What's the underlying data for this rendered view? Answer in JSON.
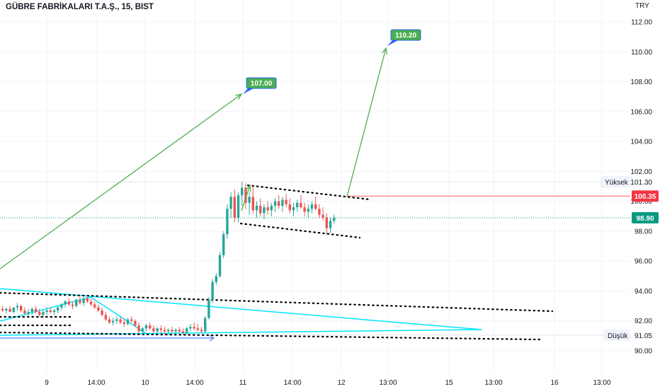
{
  "header": {
    "title": "GÜBRE FABRİKALARI T.A.Ş., 15, BIST",
    "currency": "TRY"
  },
  "colors": {
    "up": "#26a69a",
    "down": "#ef5350",
    "trend_arrow": "#4caf50",
    "cyan_lines": "#00e5ff",
    "dotted": "#000000",
    "price_tag_current": "#089981",
    "price_tag_red": "#f23645",
    "target_label": "#4caf50"
  },
  "chart_data": {
    "type": "candlestick",
    "symbol": "GÜBRE FABRİKALARI T.A.Ş.",
    "interval": "15",
    "exchange": "BIST",
    "currency": "TRY",
    "y_axis": {
      "ticks": [
        "112.00",
        "110.00",
        "108.00",
        "106.00",
        "104.00",
        "102.00",
        "100.00",
        "98.00",
        "96.00",
        "94.00",
        "92.00",
        "90.00"
      ],
      "range": [
        89.2,
        113.0
      ]
    },
    "x_axis": {
      "ticks": [
        "9",
        "14:00",
        "10",
        "14:00",
        "11",
        "14:00",
        "12",
        "13:00",
        "15",
        "13:00",
        "16",
        "13:00"
      ]
    },
    "price_labels": {
      "high": {
        "label": "Yüksek",
        "value": "101.30"
      },
      "low": {
        "label": "Düşük",
        "value": "91.05"
      },
      "red_line": {
        "value": "100.35"
      },
      "current": {
        "value": "98.90"
      }
    },
    "targets": [
      {
        "value": "107.00"
      },
      {
        "value": "110.20"
      }
    ],
    "candles": [
      [
        92.8,
        93.0,
        92.6,
        92.7
      ],
      [
        92.7,
        92.9,
        92.5,
        92.8
      ],
      [
        92.8,
        93.0,
        92.6,
        92.6
      ],
      [
        92.6,
        92.9,
        92.5,
        92.9
      ],
      [
        92.9,
        93.2,
        92.7,
        93.0
      ],
      [
        93.0,
        93.1,
        92.6,
        92.7
      ],
      [
        92.7,
        92.9,
        92.4,
        92.5
      ],
      [
        92.5,
        92.8,
        92.3,
        92.6
      ],
      [
        92.6,
        92.9,
        92.4,
        92.8
      ],
      [
        92.8,
        93.0,
        92.5,
        92.6
      ],
      [
        92.6,
        92.8,
        92.3,
        92.4
      ],
      [
        92.4,
        92.7,
        92.2,
        92.6
      ],
      [
        92.6,
        92.9,
        92.4,
        92.7
      ],
      [
        92.7,
        92.9,
        92.5,
        92.6
      ],
      [
        92.6,
        92.8,
        92.4,
        92.7
      ],
      [
        92.7,
        93.0,
        92.5,
        92.9
      ],
      [
        92.9,
        93.2,
        92.7,
        93.1
      ],
      [
        93.1,
        93.4,
        92.9,
        93.3
      ],
      [
        93.3,
        93.5,
        93.0,
        93.1
      ],
      [
        93.1,
        93.3,
        92.8,
        93.0
      ],
      [
        93.0,
        93.5,
        92.9,
        93.4
      ],
      [
        93.4,
        93.6,
        93.1,
        93.2
      ],
      [
        93.2,
        93.6,
        93.0,
        93.5
      ],
      [
        93.5,
        93.7,
        93.2,
        93.3
      ],
      [
        93.3,
        93.5,
        93.0,
        93.1
      ],
      [
        93.1,
        93.3,
        92.8,
        92.9
      ],
      [
        92.9,
        93.1,
        92.6,
        92.7
      ],
      [
        92.7,
        92.9,
        92.3,
        92.4
      ],
      [
        92.4,
        92.6,
        92.0,
        92.1
      ],
      [
        92.1,
        92.3,
        91.8,
        91.9
      ],
      [
        91.9,
        92.2,
        91.7,
        92.0
      ],
      [
        92.0,
        92.3,
        91.8,
        92.1
      ],
      [
        92.1,
        92.3,
        91.8,
        91.9
      ],
      [
        91.9,
        92.1,
        91.6,
        91.8
      ],
      [
        91.8,
        92.2,
        91.7,
        92.1
      ],
      [
        92.1,
        92.3,
        91.9,
        92.0
      ],
      [
        92.0,
        92.1,
        91.6,
        91.7
      ],
      [
        91.7,
        91.9,
        91.2,
        91.3
      ],
      [
        91.3,
        91.6,
        91.1,
        91.5
      ],
      [
        91.5,
        91.8,
        91.3,
        91.7
      ],
      [
        91.7,
        91.9,
        91.4,
        91.5
      ],
      [
        91.5,
        91.7,
        91.2,
        91.3
      ],
      [
        91.3,
        91.6,
        91.1,
        91.5
      ],
      [
        91.5,
        91.7,
        91.2,
        91.4
      ],
      [
        91.4,
        91.6,
        91.1,
        91.3
      ],
      [
        91.3,
        91.5,
        91.1,
        91.4
      ],
      [
        91.4,
        91.6,
        91.2,
        91.3
      ],
      [
        91.3,
        91.5,
        91.1,
        91.4
      ],
      [
        91.4,
        91.6,
        91.2,
        91.3
      ],
      [
        91.3,
        91.5,
        91.1,
        91.2
      ],
      [
        91.2,
        91.6,
        91.1,
        91.5
      ],
      [
        91.5,
        91.8,
        91.3,
        91.6
      ],
      [
        91.6,
        91.9,
        91.4,
        91.5
      ],
      [
        91.5,
        91.8,
        91.3,
        91.4
      ],
      [
        91.4,
        91.6,
        91.2,
        91.3
      ],
      [
        91.3,
        92.3,
        91.2,
        92.2
      ],
      [
        92.2,
        93.6,
        92.1,
        93.4
      ],
      [
        93.4,
        94.8,
        93.2,
        94.6
      ],
      [
        94.6,
        95.2,
        94.4,
        95.0
      ],
      [
        95.0,
        96.6,
        94.9,
        96.4
      ],
      [
        96.4,
        98.0,
        96.2,
        97.8
      ],
      [
        97.8,
        99.8,
        97.5,
        99.5
      ],
      [
        99.5,
        100.6,
        98.9,
        100.3
      ],
      [
        100.3,
        100.8,
        98.6,
        98.9
      ],
      [
        98.9,
        100.6,
        98.6,
        100.4
      ],
      [
        100.4,
        101.3,
        99.7,
        100.9
      ],
      [
        100.9,
        101.2,
        99.5,
        99.9
      ],
      [
        99.9,
        100.6,
        99.1,
        100.3
      ],
      [
        100.3,
        101.0,
        99.2,
        99.4
      ],
      [
        99.4,
        100.0,
        98.9,
        99.7
      ],
      [
        99.7,
        100.2,
        99.0,
        99.2
      ],
      [
        99.2,
        99.8,
        98.8,
        99.6
      ],
      [
        99.6,
        100.0,
        99.1,
        99.4
      ],
      [
        99.4,
        99.9,
        99.0,
        99.7
      ],
      [
        99.7,
        100.2,
        99.3,
        100.0
      ],
      [
        100.0,
        100.4,
        99.5,
        99.7
      ],
      [
        99.7,
        100.3,
        99.3,
        100.1
      ],
      [
        100.1,
        100.5,
        99.6,
        99.8
      ],
      [
        99.8,
        100.2,
        99.2,
        99.4
      ],
      [
        99.4,
        99.9,
        99.0,
        99.6
      ],
      [
        99.6,
        100.1,
        99.3,
        99.9
      ],
      [
        99.9,
        100.4,
        99.5,
        99.6
      ],
      [
        99.6,
        99.9,
        99.0,
        99.3
      ],
      [
        99.3,
        99.8,
        98.9,
        99.5
      ],
      [
        99.5,
        100.0,
        99.2,
        99.8
      ],
      [
        99.8,
        100.3,
        99.4,
        99.5
      ],
      [
        99.5,
        99.8,
        98.9,
        99.1
      ],
      [
        99.1,
        99.6,
        98.7,
        98.9
      ],
      [
        98.9,
        99.2,
        97.8,
        98.2
      ],
      [
        98.2,
        98.9,
        97.9,
        98.7
      ],
      [
        98.7,
        99.1,
        98.5,
        98.9
      ]
    ]
  }
}
